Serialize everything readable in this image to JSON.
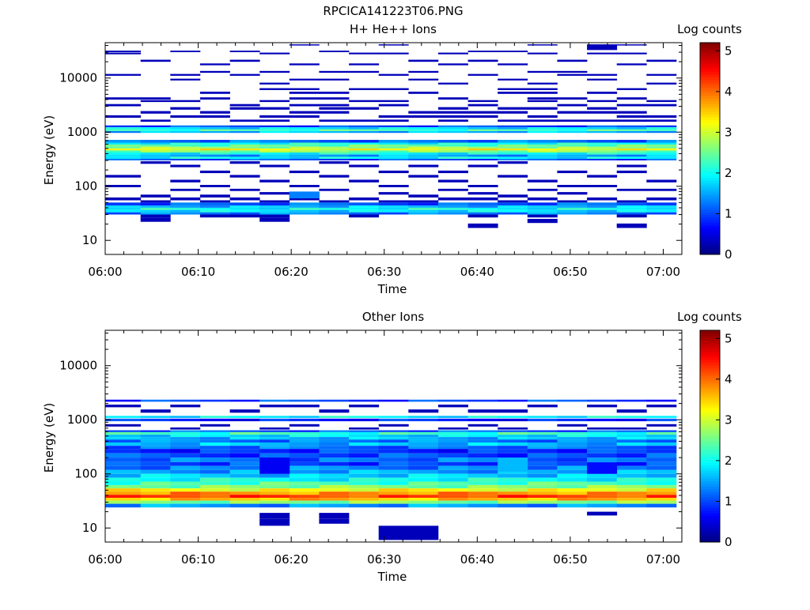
{
  "title": "RPCICA141223T06.PNG",
  "chart_data": [
    {
      "type": "heatmap",
      "title": "H+ He++ Ions",
      "xlabel": "Time",
      "ylabel": "Energy (eV)",
      "x_ticks": [
        "06:00",
        "06:10",
        "06:20",
        "06:30",
        "06:40",
        "06:50",
        "07:00"
      ],
      "x_range_minutes": [
        0,
        62
      ],
      "y_ticks": [
        "10",
        "100",
        "1000",
        "10000"
      ],
      "y_range_ev": [
        5.5,
        45000
      ],
      "y_scale": "log",
      "colorbar": {
        "label": "Log counts",
        "ticks": [
          "0",
          "1",
          "2",
          "3",
          "4",
          "5"
        ],
        "range": [
          0,
          5.2
        ]
      },
      "x_edges_minutes": [
        0,
        3.8,
        7.0,
        10.2,
        13.4,
        16.6,
        19.8,
        23.0,
        26.2,
        29.4,
        32.6,
        35.8,
        39.0,
        42.2,
        45.4,
        48.6,
        51.8,
        55.0,
        58.2,
        61.4
      ],
      "bands": [
        {
          "e": [
            970,
            1050
          ],
          "v": 1.6,
          "stripe": true
        },
        {
          "e": [
            1050,
            1130
          ],
          "v": 2.3,
          "stripe": true
        },
        {
          "e": [
            1130,
            1230
          ],
          "v": 1.8,
          "stripe": true
        },
        {
          "e": [
            1230,
            1330
          ],
          "v": 1.0,
          "stripe": true
        },
        {
          "e": [
            640,
            720
          ],
          "v": 1.2
        },
        {
          "e": [
            590,
            640
          ],
          "v": 2.0
        },
        {
          "e": [
            540,
            590
          ],
          "v": 2.4
        },
        {
          "e": [
            500,
            540
          ],
          "v": 2.7
        },
        {
          "e": [
            460,
            500
          ],
          "v": 3.2
        },
        {
          "e": [
            420,
            460
          ],
          "v": 2.6
        },
        {
          "e": [
            385,
            420
          ],
          "v": 2.0
        },
        {
          "e": [
            350,
            385
          ],
          "v": 1.5
        },
        {
          "e": [
            320,
            350
          ],
          "v": 1.9
        },
        {
          "e": [
            300,
            320
          ],
          "v": 1.0
        },
        {
          "e": [
            44,
            50
          ],
          "v": 1.1
        },
        {
          "e": [
            40,
            44
          ],
          "v": 1.6
        },
        {
          "e": [
            36.5,
            40
          ],
          "v": 2.0
        },
        {
          "e": [
            33,
            36.5
          ],
          "v": 1.8
        },
        {
          "e": [
            30,
            33
          ],
          "v": 1.3
        }
      ],
      "sparse": [
        {
          "e": [
            30000,
            32000
          ],
          "c": [
            0,
            2,
            4,
            7,
            12,
            13
          ]
        },
        {
          "e": [
            27500,
            29500
          ],
          "c": [
            0,
            5,
            8,
            9,
            11,
            14,
            16,
            17
          ]
        },
        {
          "e": [
            40000,
            42000
          ],
          "c": [
            6,
            9,
            14,
            17
          ]
        },
        {
          "e": [
            33000,
            42000
          ],
          "c": [
            16
          ]
        },
        {
          "e": [
            20000,
            21800
          ],
          "c": [
            1,
            4,
            10,
            12,
            15,
            18
          ]
        },
        {
          "e": [
            17200,
            18600
          ],
          "c": [
            3,
            6,
            8,
            11,
            13,
            17
          ]
        },
        {
          "e": [
            12500,
            13500
          ],
          "c": [
            3,
            5,
            7,
            8,
            10,
            14,
            15
          ]
        },
        {
          "e": [
            11000,
            11900
          ],
          "c": [
            0,
            2,
            4,
            9,
            12,
            15,
            16,
            18
          ]
        },
        {
          "e": [
            9000,
            9700
          ],
          "c": [
            2,
            6,
            7,
            10,
            13,
            16
          ]
        },
        {
          "e": [
            7600,
            8200
          ],
          "c": [
            5,
            11,
            14,
            18
          ]
        },
        {
          "e": [
            6000,
            6500
          ],
          "c": [
            5,
            6,
            8,
            9,
            13,
            14,
            17
          ]
        },
        {
          "e": [
            5100,
            5600
          ],
          "c": [
            3,
            6,
            7,
            10,
            13,
            14,
            16
          ]
        },
        {
          "e": [
            4000,
            4400
          ],
          "c": [
            0,
            1,
            3,
            6,
            7,
            11,
            14,
            15,
            17
          ]
        },
        {
          "e": [
            3600,
            3900
          ],
          "c": [
            1,
            2,
            5,
            8,
            9,
            12,
            14,
            16,
            18
          ]
        },
        {
          "e": [
            3000,
            3300
          ],
          "c": [
            0,
            4,
            6,
            7,
            9,
            12,
            15,
            17,
            18
          ]
        },
        {
          "e": [
            2600,
            2900
          ],
          "c": [
            2,
            4,
            5,
            7,
            8,
            11,
            13,
            14,
            16
          ]
        },
        {
          "e": [
            2200,
            2450
          ],
          "c": [
            1,
            3,
            6,
            7,
            10,
            11,
            12,
            13,
            15,
            16,
            17
          ]
        },
        {
          "e": [
            1850,
            2050
          ],
          "c": [
            0,
            2,
            3,
            5,
            6,
            9,
            10,
            11,
            12,
            14,
            17,
            18
          ]
        },
        {
          "e": [
            1550,
            1700
          ],
          "c": [
            1,
            4,
            5,
            7,
            8,
            9,
            11,
            13,
            14,
            15,
            16,
            17,
            18
          ]
        },
        {
          "e": [
            260,
            290
          ],
          "c": [
            1,
            4,
            7,
            13
          ]
        },
        {
          "e": [
            225,
            250
          ],
          "c": [
            2,
            5,
            8,
            10,
            12,
            17
          ]
        },
        {
          "e": [
            175,
            195
          ],
          "c": [
            3,
            6,
            9,
            11,
            15,
            17
          ]
        },
        {
          "e": [
            145,
            162
          ],
          "c": [
            0,
            4,
            7,
            10,
            13,
            16
          ]
        },
        {
          "e": [
            118,
            132
          ],
          "c": [
            2,
            5,
            8,
            11,
            14,
            18
          ]
        },
        {
          "e": [
            96,
            106
          ],
          "c": [
            0,
            3,
            6,
            9,
            12,
            15,
            16
          ]
        },
        {
          "e": [
            82,
            90
          ],
          "c": [
            2,
            4,
            7,
            11,
            14,
            17,
            18
          ]
        },
        {
          "e": [
            70,
            78
          ],
          "c": [
            5,
            6,
            9,
            12,
            15
          ]
        },
        {
          "e": [
            62,
            70
          ],
          "c": [
            1,
            3,
            6,
            10,
            13
          ]
        },
        {
          "e": [
            55,
            62
          ],
          "c": [
            0,
            2,
            4,
            6,
            8,
            11,
            12,
            14,
            16,
            18
          ]
        },
        {
          "e": [
            50,
            55
          ],
          "c": [
            1,
            3,
            5,
            7,
            9,
            10,
            13,
            15,
            17
          ]
        },
        {
          "e": [
            26.5,
            30
          ],
          "c": [
            1,
            5
          ]
        },
        {
          "e": [
            22,
            26.5
          ],
          "c": [
            1,
            5
          ]
        },
        {
          "e": [
            26.5,
            30
          ],
          "c": [
            3,
            4,
            8,
            12,
            14,
            17
          ]
        },
        {
          "e": [
            17,
            20.5
          ],
          "c": [
            12,
            17
          ]
        },
        {
          "e": [
            21,
            25
          ],
          "c": [
            14
          ]
        }
      ],
      "special": [
        {
          "e": [
            60,
            80
          ],
          "c": [
            6
          ],
          "v": 1.3
        }
      ]
    },
    {
      "type": "heatmap",
      "title": "Other Ions",
      "xlabel": "Time",
      "ylabel": "Energy (eV)",
      "x_ticks": [
        "06:00",
        "06:10",
        "06:20",
        "06:30",
        "06:40",
        "06:50",
        "07:00"
      ],
      "x_range_minutes": [
        0,
        62
      ],
      "y_ticks": [
        "10",
        "100",
        "1000",
        "10000"
      ],
      "y_range_ev": [
        5.5,
        45000
      ],
      "y_scale": "log",
      "colorbar": {
        "label": "Log counts",
        "ticks": [
          "0",
          "1",
          "2",
          "3",
          "4",
          "5"
        ],
        "range": [
          0,
          5.2
        ]
      },
      "x_edges_minutes": [
        0,
        3.8,
        7.0,
        10.2,
        13.4,
        16.6,
        19.8,
        23.0,
        26.2,
        29.4,
        32.6,
        35.8,
        39.0,
        42.2,
        45.4,
        48.6,
        51.8,
        55.0,
        58.2,
        61.4
      ],
      "bands": [
        {
          "e": [
            2150,
            2350
          ],
          "v": 1.0
        },
        {
          "e": [
            1080,
            1180
          ],
          "v": 1.9
        },
        {
          "e": [
            940,
            1050
          ],
          "v": 0.8
        },
        {
          "e": [
            590,
            640
          ],
          "v": 1.1
        },
        {
          "e": [
            530,
            590
          ],
          "v": 2.2
        },
        {
          "e": [
            480,
            530
          ],
          "v": 1.8
        },
        {
          "e": [
            430,
            480
          ],
          "v": 1.6
        },
        {
          "e": [
            380,
            430
          ],
          "v": 1.3
        },
        {
          "e": [
            330,
            380
          ],
          "v": 1.6
        },
        {
          "e": [
            290,
            330
          ],
          "v": 1.2
        },
        {
          "e": [
            240,
            290
          ],
          "v": 0.9
        },
        {
          "e": [
            200,
            240
          ],
          "v": 1.0
        },
        {
          "e": [
            165,
            200
          ],
          "v": 1.2
        },
        {
          "e": [
            140,
            165
          ],
          "v": 1.0
        },
        {
          "e": [
            118,
            140
          ],
          "v": 1.3
        },
        {
          "e": [
            100,
            118
          ],
          "v": 1.5
        },
        {
          "e": [
            85,
            100
          ],
          "v": 1.7
        },
        {
          "e": [
            72,
            85
          ],
          "v": 2.0
        },
        {
          "e": [
            62,
            72
          ],
          "v": 2.3
        },
        {
          "e": [
            54,
            62
          ],
          "v": 2.6
        },
        {
          "e": [
            47,
            54
          ],
          "v": 3.2
        },
        {
          "e": [
            41,
            47
          ],
          "v": 3.8
        },
        {
          "e": [
            36,
            41
          ],
          "v": 4.2
        },
        {
          "e": [
            32,
            36
          ],
          "v": 3.6
        },
        {
          "e": [
            28,
            32
          ],
          "v": 2.6
        },
        {
          "e": [
            24,
            28
          ],
          "v": 1.4
        }
      ],
      "sparse": [
        {
          "e": [
            1700,
            1900
          ],
          "c": [
            0,
            2,
            5,
            6,
            8,
            11,
            14,
            16,
            18
          ]
        },
        {
          "e": [
            1350,
            1550
          ],
          "c": [
            1,
            4,
            7,
            10,
            12,
            13,
            17
          ]
        },
        {
          "e": [
            750,
            830
          ],
          "c": [
            0,
            3,
            6,
            9,
            12,
            15,
            18
          ]
        },
        {
          "e": [
            660,
            720
          ],
          "c": [
            2,
            5,
            8,
            11,
            13,
            16,
            17
          ]
        },
        {
          "e": [
            15,
            19
          ],
          "c": [
            5,
            7
          ]
        },
        {
          "e": [
            12,
            15
          ],
          "c": [
            7
          ]
        },
        {
          "e": [
            11,
            15
          ],
          "c": [
            5
          ]
        },
        {
          "e": [
            6,
            11
          ],
          "c": [
            9,
            10
          ]
        },
        {
          "e": [
            17,
            20
          ],
          "c": [
            16
          ]
        }
      ],
      "special": [
        {
          "e": [
            100,
            200
          ],
          "c": [
            5
          ],
          "v": 0.6
        },
        {
          "e": [
            110,
            200
          ],
          "c": [
            13
          ],
          "v": 1.6
        },
        {
          "e": [
            100,
            160
          ],
          "c": [
            16
          ],
          "v": 0.7
        }
      ]
    }
  ]
}
